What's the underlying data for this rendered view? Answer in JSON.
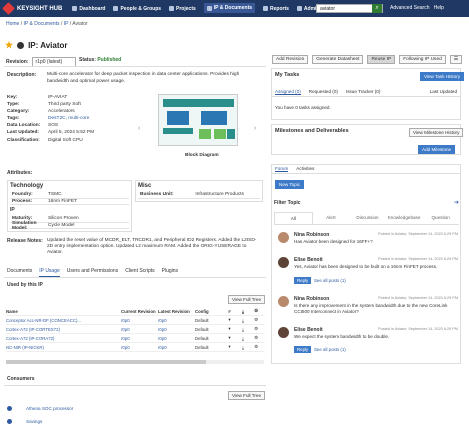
{
  "nav": {
    "brand": "KEYSIGHT HUB",
    "items": [
      "Dashboard",
      "People & Groups",
      "Projects",
      "IP & Documents",
      "Reports",
      "Admin Console"
    ],
    "search_value": "aviator",
    "advanced": "Advanced Search",
    "help": "Help"
  },
  "breadcrumb": {
    "home": "Home",
    "ip_docs": "IP & Documents",
    "ip": "IP",
    "current": "Aviator"
  },
  "page": {
    "title": "IP: Aviator",
    "revision_label": "Revision:",
    "revision_value": "r1p0 (latest)",
    "status_label": "Status:",
    "status_value": "Published"
  },
  "toolbar": {
    "add_revision": "Add Revision",
    "generate_datasheet": "Generate Datasheet",
    "reuse": "Reuse IP",
    "following": "Following IP Used"
  },
  "description": {
    "label": "Description:",
    "text": "Multi-core accelerator for deep packet inspection in data center applications. Provides high bandwidth and optimal power usage."
  },
  "fields": [
    {
      "k": "Key:",
      "v": "IP-AVIAT"
    },
    {
      "k": "Type:",
      "v": "Third party Soft"
    },
    {
      "k": "Category:",
      "v": "Accelerators"
    },
    {
      "k": "Tags:",
      "v": "DesT2C,  multi-core"
    },
    {
      "k": "Data Location:",
      "v": "SOS"
    },
    {
      "k": "Last Updated:",
      "v": "April 5, 2024 5:52 PM"
    },
    {
      "k": "Classification:",
      "v": "Digital Soft CPU"
    }
  ],
  "block_diagram_caption": "Block Diagram",
  "attributes": {
    "label": "Attributes:",
    "technology": {
      "title": "Technology",
      "rows": [
        [
          "Foundry:",
          "TSMC"
        ],
        [
          "Process:",
          "16nm FinFET"
        ]
      ]
    },
    "ip": {
      "title": "IP",
      "rows": [
        [
          "Maturity:",
          "Silicon Proven"
        ],
        [
          "Simulation Model:",
          "Cycle Model"
        ]
      ]
    },
    "misc": {
      "title": "Misc",
      "rows": [
        [
          "Business Unit:",
          "Infrastructure Products"
        ]
      ]
    }
  },
  "release_notes": {
    "label": "Release Notes:",
    "text": "Updated the reset value of MCDR_ELT, TRCDR1, and Peripheral ID2 Registers. Added the L2ISD-2D entry implementation option. Updated L2 maximum RAM. Added the ORIG-YUSERAGE to Aviator."
  },
  "tabs": [
    "Documents",
    "IP Usage",
    "Users and Permissions",
    "Client Scripts",
    "Plugins"
  ],
  "used_by": {
    "title": "Used by this IP",
    "view_full": "View Full Tree",
    "headers": [
      "Name",
      "Current Revision",
      "Latest Revision",
      "Config"
    ],
    "rows": [
      {
        "name": "Conceptor Acc-NR-DF (CONCEACC)...",
        "cur": "r0p0",
        "lat": "r0p0",
        "cfg": "Default"
      },
      {
        "name": "Cortex-A72 (IP-CORTEX72)",
        "cur": "r0p0",
        "lat": "r0p0",
        "cfg": "Default"
      },
      {
        "name": "Cortex-A72 (IP-CORA72)",
        "cur": "r0p0",
        "lat": "r0p0",
        "cfg": "Default"
      },
      {
        "name": "NC-NIR (IP-NICKR)",
        "cur": "r0p0",
        "lat": "r0p0",
        "cfg": "Default"
      }
    ]
  },
  "consumers": {
    "title": "Consumers",
    "view_full": "View Full Tree",
    "items": [
      "Athena SOC processor",
      "Savings"
    ]
  },
  "tasks": {
    "title": "My Tasks",
    "button": "View Task History",
    "tabs": [
      "Assigned (0)",
      "Requested (0)",
      "Issue Tracker (0)"
    ],
    "sort": "Last Updated",
    "empty": "You have 0 tasks assigned."
  },
  "milestones": {
    "title": "Milestones and Deliverables",
    "history": "View Milestone History",
    "add": "Add Milestone"
  },
  "forum": {
    "tabs": [
      "Forum",
      "Activities"
    ],
    "new_topic": "New Topic",
    "filter_title": "Filter Topic",
    "filters": [
      "All",
      "Alert",
      "Discussion",
      "Knowledgebase",
      "Question"
    ],
    "posts": [
      {
        "name": "Nina Robinson",
        "meta": "Posted in Aviator, September 14, 2023 6:29 PM",
        "text": "Has Aviator been designed for 16FF+?",
        "reply": false
      },
      {
        "name": "Elise Benoit",
        "meta": "Posted in Aviator, September 14, 2023 6:29 PM",
        "text": "Yes, Aviator has been designed to be built on a 16nm FinFET process.",
        "reply": true,
        "see": "See all posts (1)"
      },
      {
        "name": "Nina Robinson",
        "meta": "Posted in Aviator, September 14, 2023 6:29 PM",
        "text": "Is there any improvement in the system bandwidth due to the new CoreLink CCI500 Interconnect in Aviator?",
        "reply": false
      },
      {
        "name": "Elise Benoit",
        "meta": "Posted in Aviator, September 14, 2023 6:29 PM",
        "text": "We expect the system bandwidth to be double.",
        "reply": true,
        "see": "See all posts (1)"
      }
    ],
    "reply_label": "Reply"
  }
}
